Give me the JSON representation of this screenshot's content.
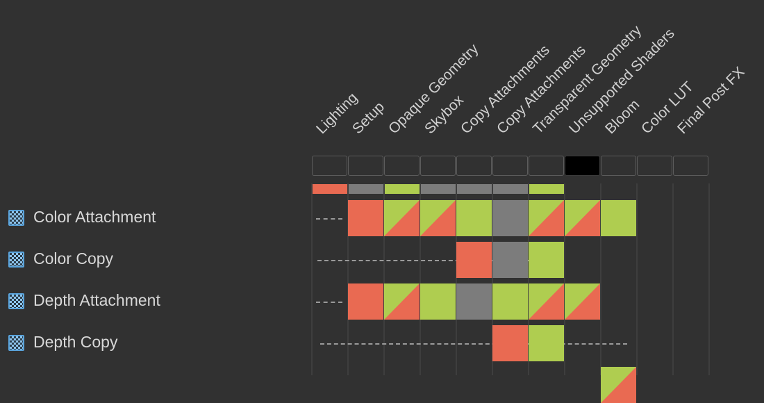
{
  "passes": [
    {
      "label": "Lighting",
      "selected": false,
      "usage": "red"
    },
    {
      "label": "Setup",
      "selected": false,
      "usage": "gray"
    },
    {
      "label": "Opaque Geometry",
      "selected": false,
      "usage": "green"
    },
    {
      "label": "Skybox",
      "selected": false,
      "usage": "gray"
    },
    {
      "label": "Copy Attachments",
      "selected": false,
      "usage": "gray"
    },
    {
      "label": "Copy Attachments",
      "selected": false,
      "usage": "gray"
    },
    {
      "label": "Transparent Geometry",
      "selected": false,
      "usage": "green"
    },
    {
      "label": "Unsupported Shaders",
      "selected": true,
      "usage": ""
    },
    {
      "label": "Bloom",
      "selected": false,
      "usage": ""
    },
    {
      "label": "Color LUT",
      "selected": false,
      "usage": ""
    },
    {
      "label": "Final Post FX",
      "selected": false,
      "usage": ""
    }
  ],
  "resources": [
    {
      "label": "Color Attachment",
      "icon": "texture-icon",
      "dash_to_pass": 0,
      "cells": [
        null,
        "write",
        "readwrite",
        "readwrite",
        "read",
        "culled",
        "readwrite",
        "readwrite",
        "read",
        null,
        null
      ]
    },
    {
      "label": "Color Copy",
      "icon": "texture-icon",
      "dash_to_pass": 3,
      "cells": [
        null,
        null,
        null,
        null,
        "write",
        "culled",
        "read",
        null,
        null,
        null,
        null
      ]
    },
    {
      "label": "Depth Attachment",
      "icon": "texture-icon",
      "dash_to_pass": 0,
      "cells": [
        null,
        "write",
        "readwrite",
        "read",
        "culled",
        "read",
        "readwrite",
        "readwrite",
        null,
        null,
        null
      ]
    },
    {
      "label": "Depth Copy",
      "icon": "texture-icon",
      "dash_to_pass": 4,
      "cells": [
        null,
        null,
        null,
        null,
        null,
        "write",
        "read",
        null,
        null,
        null,
        null
      ]
    },
    {
      "label": "",
      "icon": "",
      "dash_to_pass": -1,
      "cells": [
        null,
        null,
        null,
        null,
        null,
        null,
        null,
        null,
        "readwrite",
        null,
        null
      ]
    }
  ],
  "colors": {
    "background": "#313131",
    "write": "#e96a52",
    "read": "#afcd50",
    "culled": "#7c7c7c",
    "selected": "#000000",
    "grid": "#3e3e3e"
  }
}
